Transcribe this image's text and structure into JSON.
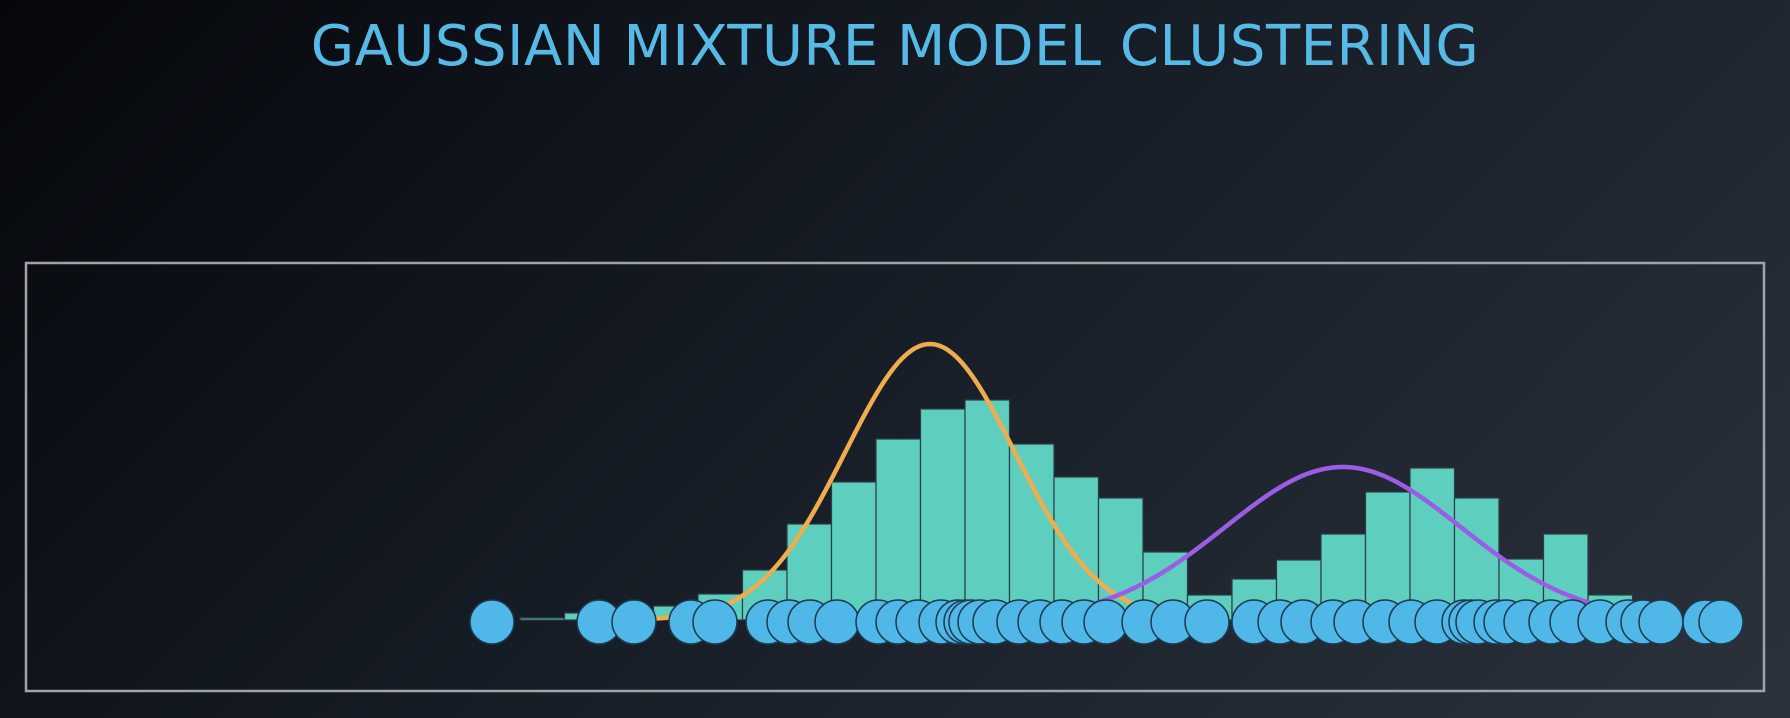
{
  "title": "GAUSSIAN MIXTURE MODEL CLUSTERING",
  "colors": {
    "bars": "#5ecebe",
    "points": "#50b8e8",
    "curve1": "#f0ad4e",
    "curve2": "#9b5de5",
    "frame": "#a0a4aa",
    "title": "#57b9e6"
  },
  "chart_data": {
    "type": "bar",
    "histogram": {
      "bin_start": 520,
      "bin_width": 44.5,
      "heights": [
        2,
        7,
        11,
        14,
        26,
        50,
        96,
        138,
        181,
        211,
        220,
        176,
        143,
        122,
        68,
        25,
        41,
        60,
        86,
        128,
        152,
        122,
        61,
        86,
        25,
        14
      ]
    },
    "points": [
      492,
      599,
      634,
      691,
      715,
      768,
      789,
      810,
      837,
      878,
      898,
      918,
      941,
      958,
      966,
      971,
      980,
      995,
      1019,
      1040,
      1062,
      1084,
      1106,
      1144,
      1173,
      1207,
      1254,
      1280,
      1303,
      1333,
      1356,
      1385,
      1411,
      1437,
      1464,
      1471,
      1478,
      1496,
      1506,
      1526,
      1551,
      1572,
      1600,
      1628,
      1643,
      1661,
      1705,
      1721
    ],
    "components": [
      {
        "mean": 930,
        "std": 85,
        "peak": 276,
        "xmin": 636,
        "xmax": 1192
      },
      {
        "mean": 1343,
        "std": 118,
        "peak": 153,
        "xmin": 1052,
        "xmax": 1607
      }
    ]
  }
}
